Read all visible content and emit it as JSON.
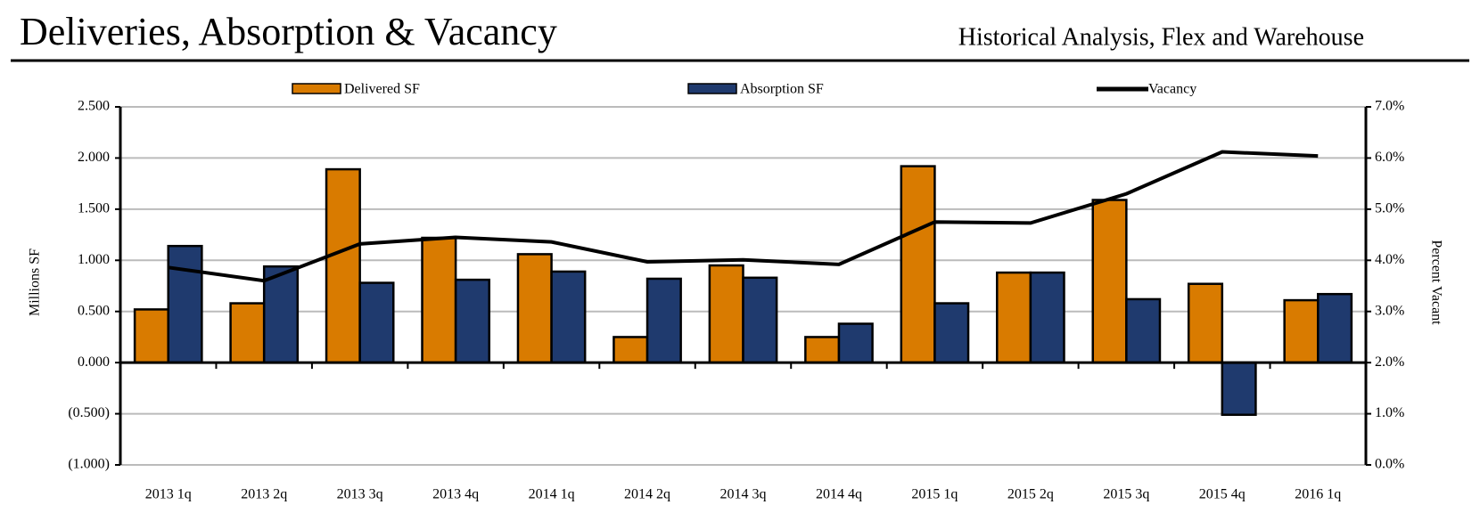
{
  "chart_data": {
    "type": "bar_line",
    "title": "Deliveries, Absorption & Vacancy",
    "subtitle": "Historical Analysis, Flex and Warehouse",
    "y_label": "Millions SF",
    "y2_label": "Percent Vacant",
    "categories": [
      "2013 1q",
      "2013 2q",
      "2013 3q",
      "2013 4q",
      "2014 1q",
      "2014 2q",
      "2014 3q",
      "2014 4q",
      "2015 1q",
      "2015 2q",
      "2015 3q",
      "2015 4q",
      "2016 1q"
    ],
    "series": [
      {
        "name": "Delivered SF",
        "color": "#d97b00",
        "kind": "bar",
        "values": [
          0.52,
          0.58,
          1.89,
          1.22,
          1.06,
          0.25,
          0.95,
          0.25,
          1.92,
          0.88,
          1.59,
          0.77,
          0.61
        ]
      },
      {
        "name": "Absorption SF",
        "color": "#1f3a6e",
        "kind": "bar",
        "values": [
          1.14,
          0.94,
          0.78,
          0.81,
          0.89,
          0.82,
          0.83,
          0.38,
          0.58,
          0.88,
          0.62,
          -0.51,
          0.67
        ]
      },
      {
        "name": "Vacancy",
        "color": "#000000",
        "kind": "line",
        "axis": "y2",
        "values": [
          3.86,
          3.6,
          4.32,
          4.45,
          4.36,
          3.97,
          4.01,
          3.92,
          4.75,
          4.73,
          5.3,
          6.12,
          6.04
        ]
      }
    ],
    "ylim": [
      -1,
      2.5
    ],
    "yticks": [
      {
        "value": -1,
        "label": "(1.000)"
      },
      {
        "value": -0.5,
        "label": "(0.500)"
      },
      {
        "value": 0,
        "label": "0.000"
      },
      {
        "value": 0.5,
        "label": "0.500"
      },
      {
        "value": 1,
        "label": "1.000"
      },
      {
        "value": 1.5,
        "label": "1.500"
      },
      {
        "value": 2,
        "label": "2.000"
      },
      {
        "value": 2.5,
        "label": "2.500"
      }
    ],
    "y2lim": [
      0,
      7
    ],
    "y2ticks": [
      {
        "value": 0,
        "label": "0.0%"
      },
      {
        "value": 1,
        "label": "1.0%"
      },
      {
        "value": 2,
        "label": "2.0%"
      },
      {
        "value": 3,
        "label": "3.0%"
      },
      {
        "value": 4,
        "label": "4.0%"
      },
      {
        "value": 5,
        "label": "5.0%"
      },
      {
        "value": 6,
        "label": "6.0%"
      },
      {
        "value": 7,
        "label": "7.0%"
      }
    ],
    "grid": true
  }
}
